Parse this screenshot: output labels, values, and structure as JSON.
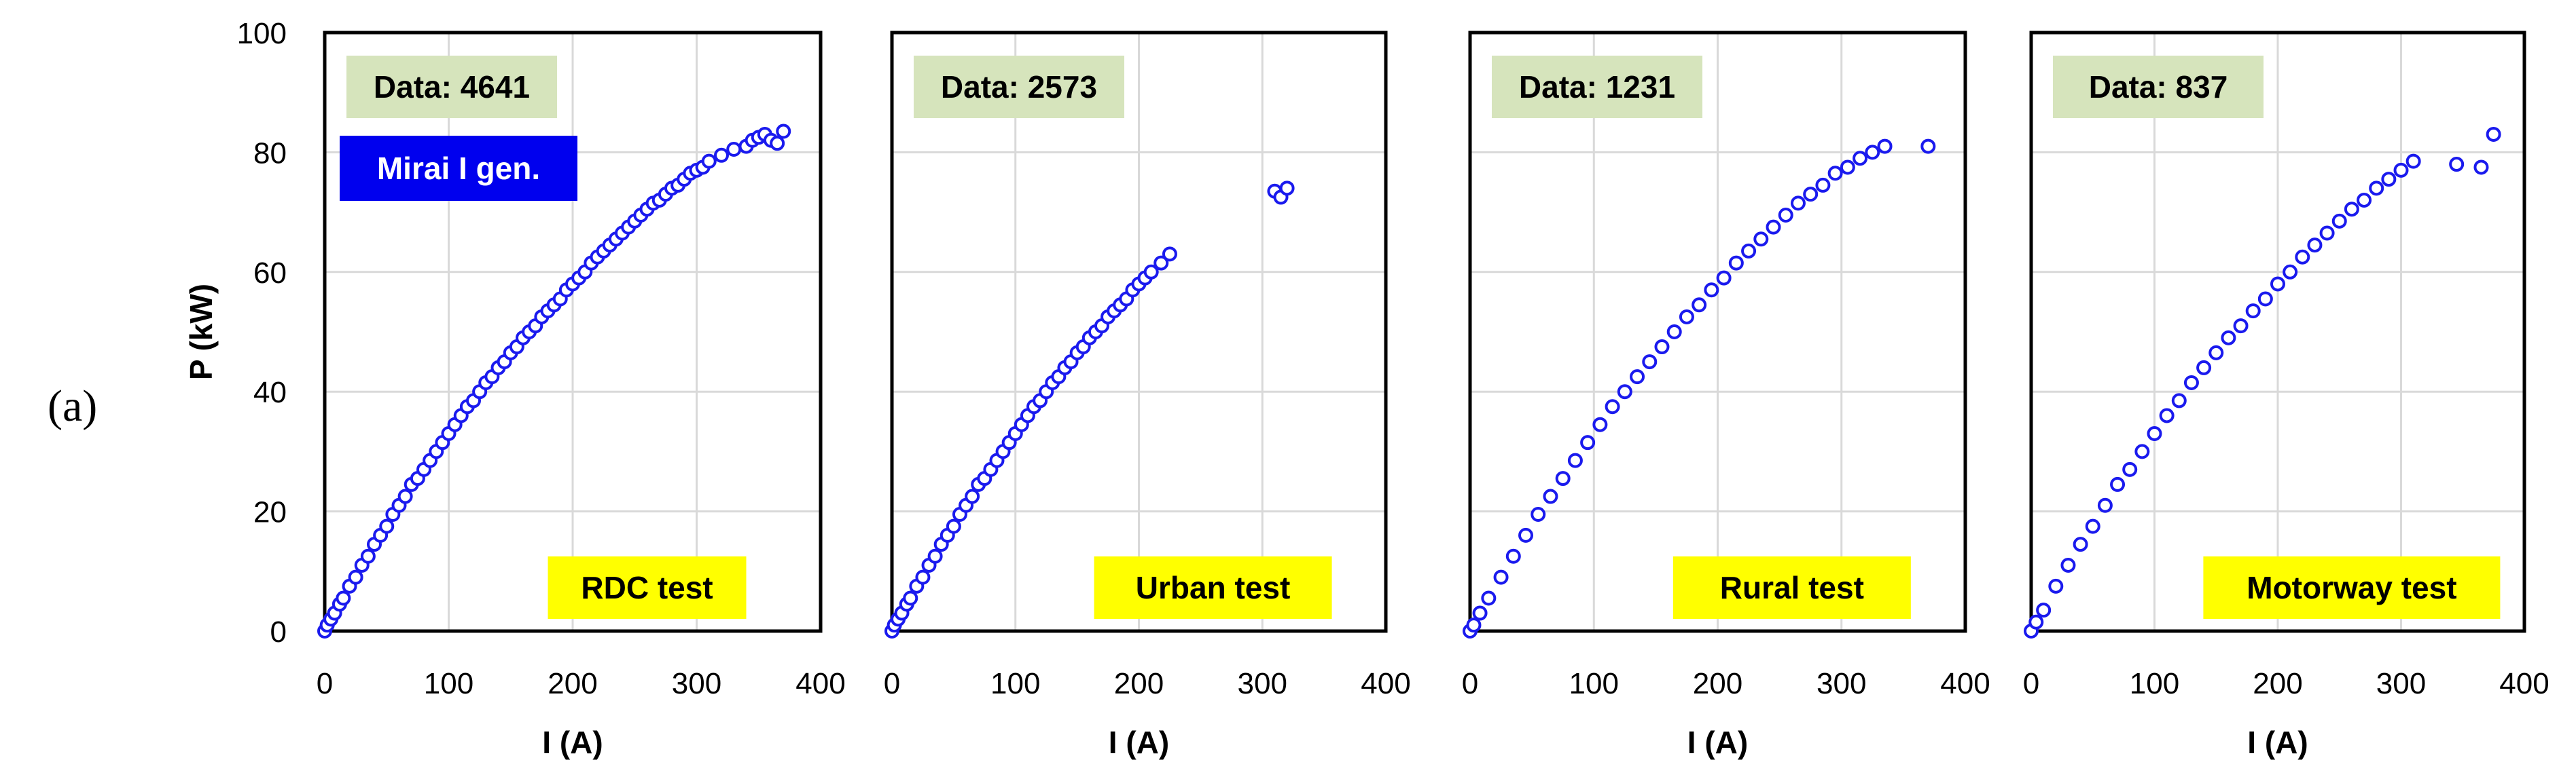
{
  "panel_label": "(a)",
  "legend_label": "Mirai I gen.",
  "colors": {
    "marker": "#1a1aee",
    "legend_bg": "#0000ee",
    "legend_text": "#ffffff",
    "count_bg": "#d6e4bc",
    "test_bg": "#ffff00",
    "grid": "#d9d9d9",
    "frame": "#000000"
  },
  "chart_data": [
    {
      "type": "scatter",
      "title": "RDC test",
      "count_label": "Data: 4641",
      "xlabel": "I (A)",
      "ylabel": "P (kW)",
      "xlim": [
        0,
        400
      ],
      "ylim": [
        0,
        100
      ],
      "xticks": [
        "0",
        "100",
        "200",
        "300",
        "400"
      ],
      "yticks": [
        "0",
        "20",
        "40",
        "60",
        "80",
        "100"
      ],
      "grid": true,
      "series": [
        {
          "name": "Mirai I gen.",
          "points": [
            [
              0,
              0
            ],
            [
              2,
              1
            ],
            [
              5,
              2
            ],
            [
              8,
              3
            ],
            [
              12,
              4.5
            ],
            [
              15,
              5.5
            ],
            [
              20,
              7.5
            ],
            [
              25,
              9
            ],
            [
              30,
              11
            ],
            [
              35,
              12.5
            ],
            [
              40,
              14.5
            ],
            [
              45,
              16
            ],
            [
              50,
              17.5
            ],
            [
              55,
              19.5
            ],
            [
              60,
              21
            ],
            [
              65,
              22.5
            ],
            [
              70,
              24.5
            ],
            [
              75,
              25.5
            ],
            [
              80,
              27
            ],
            [
              85,
              28.5
            ],
            [
              90,
              30
            ],
            [
              95,
              31.5
            ],
            [
              100,
              33
            ],
            [
              105,
              34.5
            ],
            [
              110,
              36
            ],
            [
              115,
              37.5
            ],
            [
              120,
              38.5
            ],
            [
              125,
              40
            ],
            [
              130,
              41.5
            ],
            [
              135,
              42.5
            ],
            [
              140,
              44
            ],
            [
              145,
              45
            ],
            [
              150,
              46.5
            ],
            [
              155,
              47.5
            ],
            [
              160,
              49
            ],
            [
              165,
              50
            ],
            [
              170,
              51
            ],
            [
              175,
              52.5
            ],
            [
              180,
              53.5
            ],
            [
              185,
              54.5
            ],
            [
              190,
              55.5
            ],
            [
              195,
              57
            ],
            [
              200,
              58
            ],
            [
              205,
              59
            ],
            [
              210,
              60
            ],
            [
              215,
              61.5
            ],
            [
              220,
              62.5
            ],
            [
              225,
              63.5
            ],
            [
              230,
              64.5
            ],
            [
              235,
              65.5
            ],
            [
              240,
              66.5
            ],
            [
              245,
              67.5
            ],
            [
              250,
              68.5
            ],
            [
              255,
              69.5
            ],
            [
              260,
              70.5
            ],
            [
              265,
              71.5
            ],
            [
              270,
              72
            ],
            [
              275,
              73
            ],
            [
              280,
              74
            ],
            [
              285,
              74.5
            ],
            [
              290,
              75.5
            ],
            [
              295,
              76.5
            ],
            [
              300,
              77
            ],
            [
              305,
              77.5
            ],
            [
              310,
              78.5
            ],
            [
              320,
              79.5
            ],
            [
              330,
              80.5
            ],
            [
              340,
              81
            ],
            [
              345,
              82
            ],
            [
              350,
              82.5
            ],
            [
              355,
              83
            ],
            [
              360,
              82
            ],
            [
              365,
              81.5
            ],
            [
              370,
              83.5
            ]
          ]
        }
      ]
    },
    {
      "type": "scatter",
      "title": "Urban test",
      "count_label": "Data: 2573",
      "xlabel": "I (A)",
      "ylabel": "",
      "xlim": [
        0,
        400
      ],
      "ylim": [
        0,
        100
      ],
      "xticks": [
        "0",
        "100",
        "200",
        "300",
        "400"
      ],
      "yticks": [],
      "grid": true,
      "series": [
        {
          "name": "",
          "points": [
            [
              0,
              0
            ],
            [
              2,
              1
            ],
            [
              5,
              2
            ],
            [
              8,
              3
            ],
            [
              12,
              4.5
            ],
            [
              15,
              5.5
            ],
            [
              20,
              7.5
            ],
            [
              25,
              9
            ],
            [
              30,
              11
            ],
            [
              35,
              12.5
            ],
            [
              40,
              14.5
            ],
            [
              45,
              16
            ],
            [
              50,
              17.5
            ],
            [
              55,
              19.5
            ],
            [
              60,
              21
            ],
            [
              65,
              22.5
            ],
            [
              70,
              24.5
            ],
            [
              75,
              25.5
            ],
            [
              80,
              27
            ],
            [
              85,
              28.5
            ],
            [
              90,
              30
            ],
            [
              95,
              31.5
            ],
            [
              100,
              33
            ],
            [
              105,
              34.5
            ],
            [
              110,
              36
            ],
            [
              115,
              37.5
            ],
            [
              120,
              38.5
            ],
            [
              125,
              40
            ],
            [
              130,
              41.5
            ],
            [
              135,
              42.5
            ],
            [
              140,
              44
            ],
            [
              145,
              45
            ],
            [
              150,
              46.5
            ],
            [
              155,
              47.5
            ],
            [
              160,
              49
            ],
            [
              165,
              50
            ],
            [
              170,
              51
            ],
            [
              175,
              52.5
            ],
            [
              180,
              53.5
            ],
            [
              185,
              54.5
            ],
            [
              190,
              55.5
            ],
            [
              195,
              57
            ],
            [
              200,
              58
            ],
            [
              205,
              59
            ],
            [
              210,
              60
            ],
            [
              218,
              61.5
            ],
            [
              225,
              63
            ],
            [
              310,
              73.5
            ],
            [
              315,
              72.5
            ],
            [
              320,
              74
            ]
          ]
        }
      ]
    },
    {
      "type": "scatter",
      "title": "Rural test",
      "count_label": "Data: 1231",
      "xlabel": "I (A)",
      "ylabel": "",
      "xlim": [
        0,
        400
      ],
      "ylim": [
        0,
        100
      ],
      "xticks": [
        "0",
        "100",
        "200",
        "300",
        "400"
      ],
      "yticks": [],
      "grid": true,
      "series": [
        {
          "name": "",
          "points": [
            [
              0,
              0
            ],
            [
              3,
              1
            ],
            [
              8,
              3
            ],
            [
              15,
              5.5
            ],
            [
              25,
              9
            ],
            [
              35,
              12.5
            ],
            [
              45,
              16
            ],
            [
              55,
              19.5
            ],
            [
              65,
              22.5
            ],
            [
              75,
              25.5
            ],
            [
              85,
              28.5
            ],
            [
              95,
              31.5
            ],
            [
              105,
              34.5
            ],
            [
              115,
              37.5
            ],
            [
              125,
              40
            ],
            [
              135,
              42.5
            ],
            [
              145,
              45
            ],
            [
              155,
              47.5
            ],
            [
              165,
              50
            ],
            [
              175,
              52.5
            ],
            [
              185,
              54.5
            ],
            [
              195,
              57
            ],
            [
              205,
              59
            ],
            [
              215,
              61.5
            ],
            [
              225,
              63.5
            ],
            [
              235,
              65.5
            ],
            [
              245,
              67.5
            ],
            [
              255,
              69.5
            ],
            [
              265,
              71.5
            ],
            [
              275,
              73
            ],
            [
              285,
              74.5
            ],
            [
              295,
              76.5
            ],
            [
              305,
              77.5
            ],
            [
              315,
              79
            ],
            [
              325,
              80
            ],
            [
              335,
              81
            ],
            [
              370,
              81
            ]
          ]
        }
      ]
    },
    {
      "type": "scatter",
      "title": "Motorway test",
      "count_label": "Data: 837",
      "xlabel": "I (A)",
      "ylabel": "",
      "xlim": [
        0,
        400
      ],
      "ylim": [
        0,
        100
      ],
      "xticks": [
        "0",
        "100",
        "200",
        "300",
        "400"
      ],
      "yticks": [],
      "grid": true,
      "series": [
        {
          "name": "",
          "points": [
            [
              0,
              0
            ],
            [
              4,
              1.5
            ],
            [
              10,
              3.5
            ],
            [
              20,
              7.5
            ],
            [
              30,
              11
            ],
            [
              40,
              14.5
            ],
            [
              50,
              17.5
            ],
            [
              60,
              21
            ],
            [
              70,
              24.5
            ],
            [
              80,
              27
            ],
            [
              90,
              30
            ],
            [
              100,
              33
            ],
            [
              110,
              36
            ],
            [
              120,
              38.5
            ],
            [
              130,
              41.5
            ],
            [
              140,
              44
            ],
            [
              150,
              46.5
            ],
            [
              160,
              49
            ],
            [
              170,
              51
            ],
            [
              180,
              53.5
            ],
            [
              190,
              55.5
            ],
            [
              200,
              58
            ],
            [
              210,
              60
            ],
            [
              220,
              62.5
            ],
            [
              230,
              64.5
            ],
            [
              240,
              66.5
            ],
            [
              250,
              68.5
            ],
            [
              260,
              70.5
            ],
            [
              270,
              72
            ],
            [
              280,
              74
            ],
            [
              290,
              75.5
            ],
            [
              300,
              77
            ],
            [
              310,
              78.5
            ],
            [
              345,
              78
            ],
            [
              365,
              77.5
            ],
            [
              375,
              83
            ]
          ]
        }
      ]
    }
  ]
}
